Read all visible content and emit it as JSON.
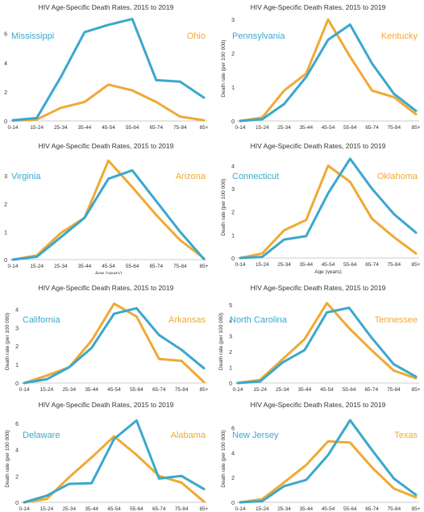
{
  "colors": {
    "blue": "#3AA8CC",
    "orange": "#F0A935",
    "axis": "#bdbdbd",
    "text": "#333333"
  },
  "chart_data": [
    {
      "type": "line",
      "title": "HIV Age-Specific Death Rates, 2015 to 2019",
      "xlabel": "Age (years)",
      "ylabel": "",
      "categories": [
        "0-14",
        "15-24",
        "25-34",
        "35-44",
        "45-54",
        "55-64",
        "65-74",
        "75-84",
        "85+"
      ],
      "yticks": [
        0,
        2,
        4,
        6
      ],
      "ylim": [
        0,
        7.2
      ],
      "series": [
        {
          "name": "Mississippi",
          "color": "#3AA8CC",
          "values": [
            0.05,
            0.2,
            3.0,
            6.1,
            6.6,
            7.0,
            2.8,
            2.7,
            1.6
          ]
        },
        {
          "name": "Ohio",
          "color": "#F0A935",
          "values": [
            0.02,
            0.1,
            0.9,
            1.3,
            2.5,
            2.1,
            1.3,
            0.3,
            0.05
          ]
        }
      ]
    },
    {
      "type": "line",
      "title": "HIV Age-Specific Death Rates, 2015 to 2019",
      "xlabel": "Age (years)",
      "ylabel": "Death rate (per 100 000)",
      "categories": [
        "0-14",
        "15-24",
        "25-34",
        "35-44",
        "45-54",
        "55-64",
        "65-74",
        "75-84",
        "85+"
      ],
      "yticks": [
        0,
        1,
        2,
        3
      ],
      "ylim": [
        0,
        3.1
      ],
      "series": [
        {
          "name": "Pennsylvania",
          "color": "#3AA8CC",
          "values": [
            0.0,
            0.05,
            0.5,
            1.3,
            2.4,
            2.85,
            1.7,
            0.8,
            0.3
          ]
        },
        {
          "name": "Kentucky",
          "color": "#F0A935",
          "values": [
            0.0,
            0.1,
            0.9,
            1.4,
            3.0,
            1.9,
            0.9,
            0.7,
            0.2
          ]
        }
      ]
    },
    {
      "type": "line",
      "title": "HIV Age-Specific Death Rates, 2015 to 2019",
      "xlabel": "Age (years)",
      "ylabel": "",
      "categories": [
        "0-14",
        "15-24",
        "25-34",
        "35-44",
        "45-54",
        "55-64",
        "65-74",
        "75-84",
        "85+"
      ],
      "yticks": [
        0,
        1,
        2,
        3
      ],
      "ylim": [
        0,
        3.7
      ],
      "series": [
        {
          "name": "Virginia",
          "color": "#3AA8CC",
          "values": [
            0.0,
            0.1,
            0.8,
            1.5,
            2.9,
            3.2,
            2.1,
            1.0,
            0.02
          ]
        },
        {
          "name": "Arizona",
          "color": "#F0A935",
          "values": [
            0.0,
            0.15,
            0.95,
            1.5,
            3.55,
            2.6,
            1.6,
            0.7,
            0.05
          ]
        }
      ]
    },
    {
      "type": "line",
      "title": "HIV Age-Specific Death Rates, 2015 to 2019",
      "xlabel": "Age (years)",
      "ylabel": "Death rate (per 100 000)",
      "categories": [
        "0-14",
        "15-24",
        "25-34",
        "35-44",
        "45-54",
        "55-64",
        "65-74",
        "75-84",
        "85+"
      ],
      "yticks": [
        0,
        1,
        2,
        3,
        4
      ],
      "ylim": [
        0,
        4.4
      ],
      "series": [
        {
          "name": "Connecticut",
          "color": "#3AA8CC",
          "values": [
            0.0,
            0.05,
            0.8,
            0.95,
            2.8,
            4.3,
            3.0,
            1.9,
            1.1
          ]
        },
        {
          "name": "Oklahoma",
          "color": "#F0A935",
          "values": [
            0.0,
            0.2,
            1.2,
            1.65,
            4.0,
            3.3,
            1.7,
            0.9,
            0.2
          ]
        }
      ]
    },
    {
      "type": "line",
      "title": "HIV Age-Specific Death Rates, 2015 to 2019",
      "xlabel": "Age (years)",
      "ylabel": "Death rate (per 100 000)",
      "categories": [
        "0-14",
        "15-24",
        "25-34",
        "35-44",
        "45-54",
        "55-64",
        "65-74",
        "75-84",
        "85+"
      ],
      "yticks": [
        0,
        1,
        2,
        3,
        4
      ],
      "ylim": [
        0,
        4.5
      ],
      "series": [
        {
          "name": "California",
          "color": "#3AA8CC",
          "values": [
            0.0,
            0.2,
            0.85,
            1.9,
            3.75,
            4.05,
            2.6,
            1.8,
            0.8
          ]
        },
        {
          "name": "Arkansas",
          "color": "#F0A935",
          "values": [
            0.0,
            0.4,
            0.85,
            2.3,
            4.3,
            3.6,
            1.3,
            1.2,
            0.05
          ]
        }
      ]
    },
    {
      "type": "line",
      "title": "HIV Age-Specific Death Rates, 2015 to 2019",
      "xlabel": "Age (years)",
      "ylabel": "Death rate (per 100 000)",
      "categories": [
        "0-14",
        "15-24",
        "25-34",
        "35-44",
        "45-54",
        "55-64",
        "65-74",
        "75-84",
        "85+"
      ],
      "yticks": [
        0,
        1,
        2,
        3,
        4,
        5
      ],
      "ylim": [
        0,
        5.3
      ],
      "series": [
        {
          "name": "North Carolina",
          "color": "#3AA8CC",
          "values": [
            0.0,
            0.1,
            1.3,
            2.1,
            4.5,
            4.8,
            2.9,
            1.2,
            0.4
          ]
        },
        {
          "name": "Tennessee",
          "color": "#F0A935",
          "values": [
            0.0,
            0.2,
            1.5,
            2.8,
            5.1,
            3.5,
            2.1,
            0.8,
            0.3
          ]
        }
      ]
    },
    {
      "type": "line",
      "title": "HIV Age-Specific Death Rates, 2015 to 2019",
      "xlabel": "Age (years)",
      "ylabel": "Death rate (per 100 000)",
      "categories": [
        "0-14",
        "15-24",
        "25-34",
        "35-44",
        "45-54",
        "55-64",
        "65-74",
        "75-84",
        "85+"
      ],
      "yticks": [
        0,
        2,
        4,
        6
      ],
      "ylim": [
        0,
        6.6
      ],
      "series": [
        {
          "name": "Delaware",
          "color": "#3AA8CC",
          "values": [
            0.0,
            0.5,
            1.4,
            1.45,
            4.8,
            6.2,
            1.8,
            2.0,
            1.0
          ]
        },
        {
          "name": "Alabama",
          "color": "#F0A935",
          "values": [
            0.0,
            0.25,
            1.9,
            3.4,
            5.0,
            3.6,
            2.0,
            1.5,
            0.05
          ]
        }
      ]
    },
    {
      "type": "line",
      "title": "HIV Age-Specific Death Rates, 2015 to 2019",
      "xlabel": "Age (years)",
      "ylabel": "Death rate (per 100 000)",
      "categories": [
        "0-14",
        "15-24",
        "25-34",
        "35-44",
        "45-54",
        "55-64",
        "65-74",
        "75-84",
        "85+"
      ],
      "yticks": [
        0,
        2,
        4,
        6
      ],
      "ylim": [
        0,
        7.0
      ],
      "series": [
        {
          "name": "New Jersey",
          "color": "#3AA8CC",
          "values": [
            0.0,
            0.1,
            1.3,
            1.8,
            3.8,
            6.6,
            4.2,
            1.9,
            0.6
          ]
        },
        {
          "name": "Texas",
          "color": "#F0A935",
          "values": [
            0.0,
            0.25,
            1.6,
            3.0,
            4.9,
            4.8,
            2.8,
            1.1,
            0.4
          ]
        }
      ]
    }
  ]
}
